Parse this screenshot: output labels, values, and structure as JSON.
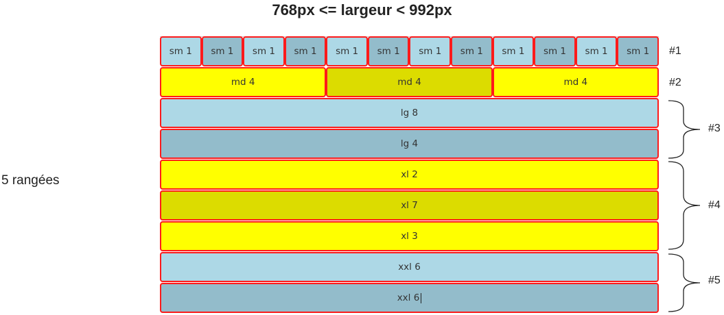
{
  "title": "768px <= largeur < 992px",
  "side_label": "5 rangées",
  "row1": {
    "label": "#1",
    "cells": [
      "sm 1",
      "sm 1",
      "sm 1",
      "sm 1",
      "sm 1",
      "sm 1",
      "sm 1",
      "sm 1",
      "sm 1",
      "sm 1",
      "sm 1",
      "sm 1"
    ]
  },
  "row2": {
    "label": "#2",
    "cells": [
      "md 4",
      "md 4",
      "md 4"
    ]
  },
  "row3": {
    "label": "#3",
    "cells": [
      "lg 8",
      "lg 4"
    ]
  },
  "row4": {
    "label": "#4",
    "cells": [
      "xl 2",
      "xl 7",
      "xl 3"
    ]
  },
  "row5": {
    "label": "#5",
    "cells": [
      "xxl 6",
      "xxl 6"
    ]
  },
  "colors": {
    "light_blue": "#add8e6",
    "grey_blue": "#93bccb",
    "yellow": "#ffff00",
    "olive_yellow": "#dcdc00",
    "border": "#ff1a1a"
  }
}
